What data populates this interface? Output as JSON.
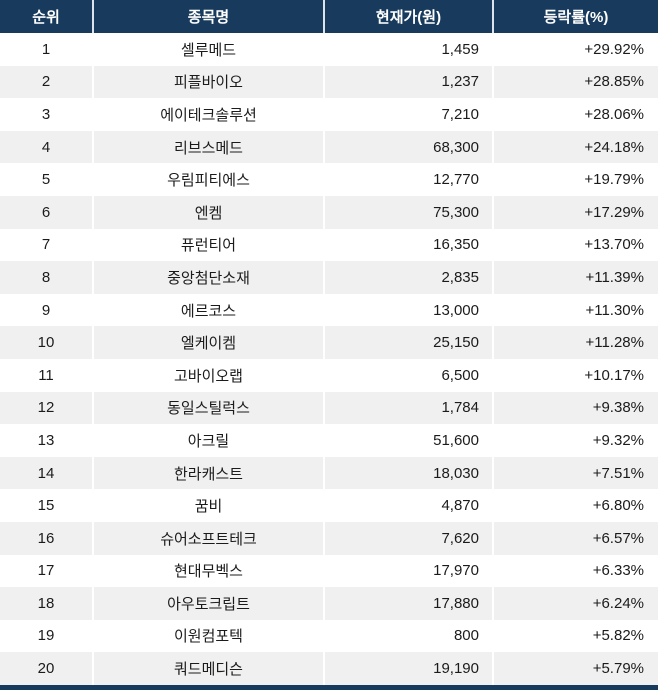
{
  "chart_data": {
    "type": "table",
    "title": "",
    "columns": [
      "순위",
      "종목명",
      "현재가(원)",
      "등락률(%)"
    ],
    "rows": [
      [
        "1",
        "셀루메드",
        "1,459",
        "+29.92%"
      ],
      [
        "2",
        "피플바이오",
        "1,237",
        "+28.85%"
      ],
      [
        "3",
        "에이테크솔루션",
        "7,210",
        "+28.06%"
      ],
      [
        "4",
        "리브스메드",
        "68,300",
        "+24.18%"
      ],
      [
        "5",
        "우림피티에스",
        "12,770",
        "+19.79%"
      ],
      [
        "6",
        "엔켐",
        "75,300",
        "+17.29%"
      ],
      [
        "7",
        "퓨런티어",
        "16,350",
        "+13.70%"
      ],
      [
        "8",
        "중앙첨단소재",
        "2,835",
        "+11.39%"
      ],
      [
        "9",
        "에르코스",
        "13,000",
        "+11.30%"
      ],
      [
        "10",
        "엘케이켐",
        "25,150",
        "+11.28%"
      ],
      [
        "11",
        "고바이오랩",
        "6,500",
        "+10.17%"
      ],
      [
        "12",
        "동일스틸럭스",
        "1,784",
        "+9.38%"
      ],
      [
        "13",
        "아크릴",
        "51,600",
        "+9.32%"
      ],
      [
        "14",
        "한라캐스트",
        "18,030",
        "+7.51%"
      ],
      [
        "15",
        "꿈비",
        "4,870",
        "+6.80%"
      ],
      [
        "16",
        "슈어소프트테크",
        "7,620",
        "+6.57%"
      ],
      [
        "17",
        "현대무벡스",
        "17,970",
        "+6.33%"
      ],
      [
        "18",
        "아우토크립트",
        "17,880",
        "+6.24%"
      ],
      [
        "19",
        "이원컴포텍",
        "800",
        "+5.82%"
      ],
      [
        "20",
        "쿼드메디슨",
        "19,190",
        "+5.79%"
      ]
    ],
    "layout": {
      "zebra_striping": true,
      "first_row_background": "white",
      "column_alignment": [
        "center",
        "center",
        "right",
        "right"
      ]
    }
  },
  "colors": {
    "header_bg": "#173a5d",
    "header_text": "#ffffff",
    "header_divider": "#dce3eb",
    "row_alt_bg": "#f0f0f0",
    "row_divider": "#ffffff",
    "text": "#1b1b1b",
    "bottom_bar": "#173a5d"
  }
}
